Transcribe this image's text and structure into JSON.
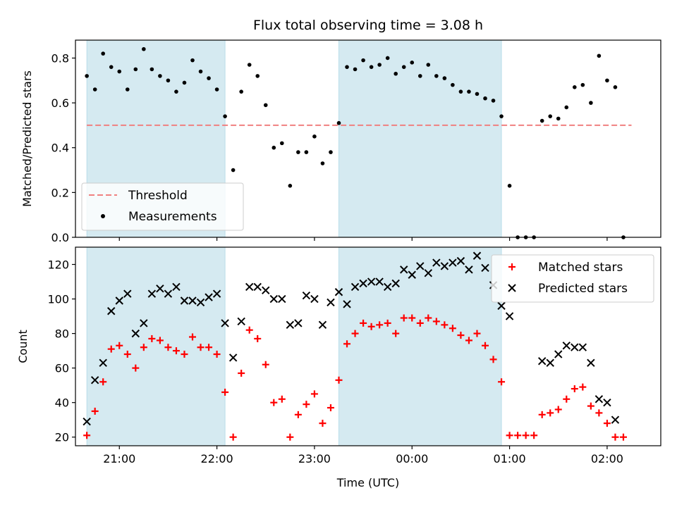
{
  "chart_data": [
    {
      "type": "scatter",
      "title": "Flux total observing time = 3.08 h",
      "xlabel": "",
      "ylabel": "Matched/Predicted stars",
      "xlim": [
        "20:33",
        "02:33"
      ],
      "ylim": [
        0,
        0.88
      ],
      "yticks": [
        0.0,
        0.2,
        0.4,
        0.6,
        0.8
      ],
      "ytick_labels": [
        "0.0",
        "0.2",
        "0.4",
        "0.6",
        "0.8"
      ],
      "shaded_intervals": [
        [
          "20:40",
          "22:05"
        ],
        [
          "23:15",
          "00:55"
        ]
      ],
      "shade_color": "#d5eaf1",
      "threshold": {
        "name": "Threshold",
        "value": 0.5,
        "x_range": [
          "20:40",
          "02:15"
        ],
        "color": "#f08080"
      },
      "legend": {
        "position": "lower-left",
        "entries": [
          "Threshold",
          "Measurements"
        ]
      },
      "series": [
        {
          "name": "Measurements",
          "color": "#000000",
          "marker": "dot",
          "points": [
            [
              "20:40",
              0.72
            ],
            [
              "20:45",
              0.66
            ],
            [
              "20:50",
              0.82
            ],
            [
              "20:55",
              0.76
            ],
            [
              "21:00",
              0.74
            ],
            [
              "21:05",
              0.66
            ],
            [
              "21:10",
              0.75
            ],
            [
              "21:15",
              0.84
            ],
            [
              "21:20",
              0.75
            ],
            [
              "21:25",
              0.72
            ],
            [
              "21:30",
              0.7
            ],
            [
              "21:35",
              0.65
            ],
            [
              "21:40",
              0.69
            ],
            [
              "21:45",
              0.79
            ],
            [
              "21:50",
              0.74
            ],
            [
              "21:55",
              0.71
            ],
            [
              "22:00",
              0.66
            ],
            [
              "22:05",
              0.54
            ],
            [
              "22:10",
              0.3
            ],
            [
              "22:15",
              0.65
            ],
            [
              "22:20",
              0.77
            ],
            [
              "22:25",
              0.72
            ],
            [
              "22:30",
              0.59
            ],
            [
              "22:35",
              0.4
            ],
            [
              "22:40",
              0.42
            ],
            [
              "22:45",
              0.23
            ],
            [
              "22:50",
              0.38
            ],
            [
              "22:55",
              0.38
            ],
            [
              "23:00",
              0.45
            ],
            [
              "23:05",
              0.33
            ],
            [
              "23:10",
              0.38
            ],
            [
              "23:15",
              0.51
            ],
            [
              "23:20",
              0.76
            ],
            [
              "23:25",
              0.75
            ],
            [
              "23:30",
              0.79
            ],
            [
              "23:35",
              0.76
            ],
            [
              "23:40",
              0.77
            ],
            [
              "23:45",
              0.8
            ],
            [
              "23:50",
              0.73
            ],
            [
              "23:55",
              0.76
            ],
            [
              "00:00",
              0.78
            ],
            [
              "00:05",
              0.72
            ],
            [
              "00:10",
              0.77
            ],
            [
              "00:15",
              0.72
            ],
            [
              "00:20",
              0.71
            ],
            [
              "00:25",
              0.68
            ],
            [
              "00:30",
              0.65
            ],
            [
              "00:35",
              0.65
            ],
            [
              "00:40",
              0.64
            ],
            [
              "00:45",
              0.62
            ],
            [
              "00:50",
              0.61
            ],
            [
              "00:55",
              0.54
            ],
            [
              "01:00",
              0.23
            ],
            [
              "01:05",
              0.0
            ],
            [
              "01:10",
              0.0
            ],
            [
              "01:15",
              0.0
            ],
            [
              "01:20",
              0.52
            ],
            [
              "01:25",
              0.54
            ],
            [
              "01:30",
              0.53
            ],
            [
              "01:35",
              0.58
            ],
            [
              "01:40",
              0.67
            ],
            [
              "01:45",
              0.68
            ],
            [
              "01:50",
              0.6
            ],
            [
              "01:55",
              0.81
            ],
            [
              "02:00",
              0.7
            ],
            [
              "02:05",
              0.67
            ],
            [
              "02:10",
              0.0
            ]
          ]
        }
      ]
    },
    {
      "type": "scatter",
      "title": "",
      "xlabel": "Time (UTC)",
      "ylabel": "Count",
      "xlim": [
        "20:33",
        "02:33"
      ],
      "ylim": [
        15,
        130
      ],
      "yticks": [
        20,
        40,
        60,
        80,
        100,
        120
      ],
      "ytick_labels": [
        "20",
        "40",
        "60",
        "80",
        "100",
        "120"
      ],
      "xticks": [
        "21:00",
        "22:00",
        "23:00",
        "00:00",
        "01:00",
        "02:00"
      ],
      "xtick_labels": [
        "21:00",
        "22:00",
        "23:00",
        "00:00",
        "01:00",
        "02:00"
      ],
      "shaded_intervals": [
        [
          "20:40",
          "22:05"
        ],
        [
          "23:15",
          "00:55"
        ]
      ],
      "shade_color": "#d5eaf1",
      "legend": {
        "position": "upper-right",
        "entries": [
          "Matched stars",
          "Predicted stars"
        ]
      },
      "series": [
        {
          "name": "Matched stars",
          "color": "#ff0000",
          "marker": "plus",
          "points": [
            [
              "20:40",
              21
            ],
            [
              "20:45",
              35
            ],
            [
              "20:50",
              52
            ],
            [
              "20:55",
              71
            ],
            [
              "21:00",
              73
            ],
            [
              "21:05",
              68
            ],
            [
              "21:10",
              60
            ],
            [
              "21:15",
              72
            ],
            [
              "21:20",
              77
            ],
            [
              "21:25",
              76
            ],
            [
              "21:30",
              72
            ],
            [
              "21:35",
              70
            ],
            [
              "21:40",
              68
            ],
            [
              "21:45",
              78
            ],
            [
              "21:50",
              72
            ],
            [
              "21:55",
              72
            ],
            [
              "22:00",
              68
            ],
            [
              "22:05",
              46
            ],
            [
              "22:10",
              20
            ],
            [
              "22:15",
              57
            ],
            [
              "22:20",
              82
            ],
            [
              "22:25",
              77
            ],
            [
              "22:30",
              62
            ],
            [
              "22:35",
              40
            ],
            [
              "22:40",
              42
            ],
            [
              "22:45",
              20
            ],
            [
              "22:50",
              33
            ],
            [
              "22:55",
              39
            ],
            [
              "23:00",
              45
            ],
            [
              "23:05",
              28
            ],
            [
              "23:10",
              37
            ],
            [
              "23:15",
              53
            ],
            [
              "23:20",
              74
            ],
            [
              "23:25",
              80
            ],
            [
              "23:30",
              86
            ],
            [
              "23:35",
              84
            ],
            [
              "23:40",
              85
            ],
            [
              "23:45",
              86
            ],
            [
              "23:50",
              80
            ],
            [
              "23:55",
              89
            ],
            [
              "00:00",
              89
            ],
            [
              "00:05",
              86
            ],
            [
              "00:10",
              89
            ],
            [
              "00:15",
              87
            ],
            [
              "00:20",
              85
            ],
            [
              "00:25",
              83
            ],
            [
              "00:30",
              79
            ],
            [
              "00:35",
              76
            ],
            [
              "00:40",
              80
            ],
            [
              "00:45",
              73
            ],
            [
              "00:50",
              65
            ],
            [
              "00:55",
              52
            ],
            [
              "01:00",
              21
            ],
            [
              "01:05",
              21
            ],
            [
              "01:10",
              21
            ],
            [
              "01:15",
              21
            ],
            [
              "01:20",
              33
            ],
            [
              "01:25",
              34
            ],
            [
              "01:30",
              36
            ],
            [
              "01:35",
              42
            ],
            [
              "01:40",
              48
            ],
            [
              "01:45",
              49
            ],
            [
              "01:50",
              38
            ],
            [
              "01:55",
              34
            ],
            [
              "02:00",
              28
            ],
            [
              "02:05",
              20
            ],
            [
              "02:10",
              20
            ]
          ]
        },
        {
          "name": "Predicted stars",
          "color": "#000000",
          "marker": "x",
          "points": [
            [
              "20:40",
              29
            ],
            [
              "20:45",
              53
            ],
            [
              "20:50",
              63
            ],
            [
              "20:55",
              93
            ],
            [
              "21:00",
              99
            ],
            [
              "21:05",
              103
            ],
            [
              "21:10",
              80
            ],
            [
              "21:15",
              86
            ],
            [
              "21:20",
              103
            ],
            [
              "21:25",
              106
            ],
            [
              "21:30",
              103
            ],
            [
              "21:35",
              107
            ],
            [
              "21:40",
              99
            ],
            [
              "21:45",
              99
            ],
            [
              "21:50",
              98
            ],
            [
              "21:55",
              101
            ],
            [
              "22:00",
              103
            ],
            [
              "22:05",
              86
            ],
            [
              "22:10",
              66
            ],
            [
              "22:15",
              87
            ],
            [
              "22:20",
              107
            ],
            [
              "22:25",
              107
            ],
            [
              "22:30",
              105
            ],
            [
              "22:35",
              100
            ],
            [
              "22:40",
              100
            ],
            [
              "22:45",
              85
            ],
            [
              "22:50",
              86
            ],
            [
              "22:55",
              102
            ],
            [
              "23:00",
              100
            ],
            [
              "23:05",
              85
            ],
            [
              "23:10",
              98
            ],
            [
              "23:15",
              104
            ],
            [
              "23:20",
              97
            ],
            [
              "23:25",
              107
            ],
            [
              "23:30",
              109
            ],
            [
              "23:35",
              110
            ],
            [
              "23:40",
              110
            ],
            [
              "23:45",
              107
            ],
            [
              "23:50",
              109
            ],
            [
              "23:55",
              117
            ],
            [
              "00:00",
              114
            ],
            [
              "00:05",
              119
            ],
            [
              "00:10",
              115
            ],
            [
              "00:15",
              121
            ],
            [
              "00:20",
              119
            ],
            [
              "00:25",
              121
            ],
            [
              "00:30",
              122
            ],
            [
              "00:35",
              117
            ],
            [
              "00:40",
              125
            ],
            [
              "00:45",
              118
            ],
            [
              "00:50",
              108
            ],
            [
              "00:55",
              96
            ],
            [
              "01:00",
              90
            ],
            [
              "01:20",
              64
            ],
            [
              "01:25",
              63
            ],
            [
              "01:30",
              68
            ],
            [
              "01:35",
              73
            ],
            [
              "01:40",
              72
            ],
            [
              "01:45",
              72
            ],
            [
              "01:50",
              63
            ],
            [
              "01:55",
              42
            ],
            [
              "02:00",
              40
            ],
            [
              "02:05",
              30
            ]
          ]
        }
      ]
    }
  ]
}
